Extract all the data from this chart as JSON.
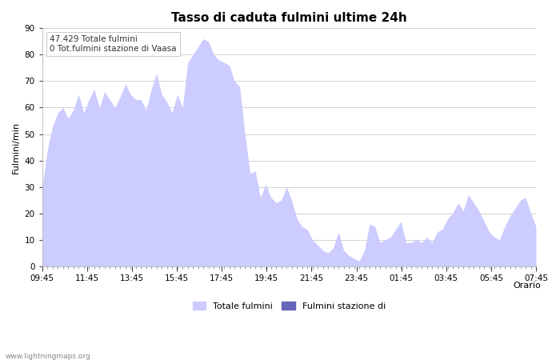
{
  "title": "Tasso di caduta fulmini ultime 24h",
  "xlabel": "Orario",
  "ylabel": "Fulmini/min",
  "annotation": "47.429 Totale fulmini\n0 Tot.fulmini stazione di Vaasa",
  "legend_label1": "Totale fulmini",
  "legend_label2": "Fulmini stazione di",
  "fill_color1": "#ccccff",
  "fill_color2": "#6666bb",
  "ylim": [
    0,
    90
  ],
  "yticks": [
    0,
    10,
    20,
    30,
    40,
    50,
    60,
    70,
    80,
    90
  ],
  "xtick_labels": [
    "09:45",
    "11:45",
    "13:45",
    "15:45",
    "17:45",
    "19:45",
    "21:45",
    "23:45",
    "01:45",
    "03:45",
    "05:45",
    "07:45"
  ],
  "watermark": "www.lightningmaps.org",
  "y_totale": [
    30,
    44,
    53,
    58,
    60,
    56,
    59,
    65,
    58,
    63,
    67,
    60,
    66,
    63,
    60,
    64,
    69,
    65,
    63,
    63,
    59,
    67,
    73,
    65,
    62,
    58,
    65,
    60,
    77,
    80,
    83,
    86,
    85,
    80,
    78,
    77,
    76,
    70,
    68,
    50,
    35,
    36,
    26,
    31,
    26,
    24,
    25,
    30,
    25,
    18,
    15,
    14,
    10,
    8,
    6,
    5,
    7,
    13,
    6,
    4,
    3,
    2,
    6,
    16,
    15,
    9,
    10,
    11,
    14,
    17,
    9,
    9,
    10,
    9,
    11,
    9,
    13,
    14,
    18,
    20,
    24,
    21,
    27,
    24,
    21,
    17,
    13,
    11,
    10,
    15,
    19,
    22,
    25,
    26,
    20,
    15
  ],
  "y_stazione": [
    0,
    0,
    0,
    0,
    0,
    0,
    0,
    0,
    0,
    0,
    0,
    0,
    0,
    0,
    0,
    0,
    0,
    0,
    0,
    0,
    0,
    0,
    0,
    0,
    0,
    0,
    0,
    0,
    0,
    0,
    0,
    0,
    0,
    0,
    0,
    0,
    0,
    0,
    0,
    0,
    0,
    0,
    0,
    0,
    0,
    0,
    0,
    0,
    0,
    0,
    0,
    0,
    0,
    0,
    0,
    0,
    0,
    0,
    0,
    0,
    0,
    0,
    0,
    0,
    0,
    0,
    0,
    0,
    0,
    0,
    0,
    0,
    0,
    0,
    0,
    0,
    0,
    0,
    0,
    0,
    0,
    0,
    0,
    0,
    0,
    0,
    0,
    0,
    0,
    0,
    0,
    0,
    0,
    0,
    0,
    0
  ]
}
